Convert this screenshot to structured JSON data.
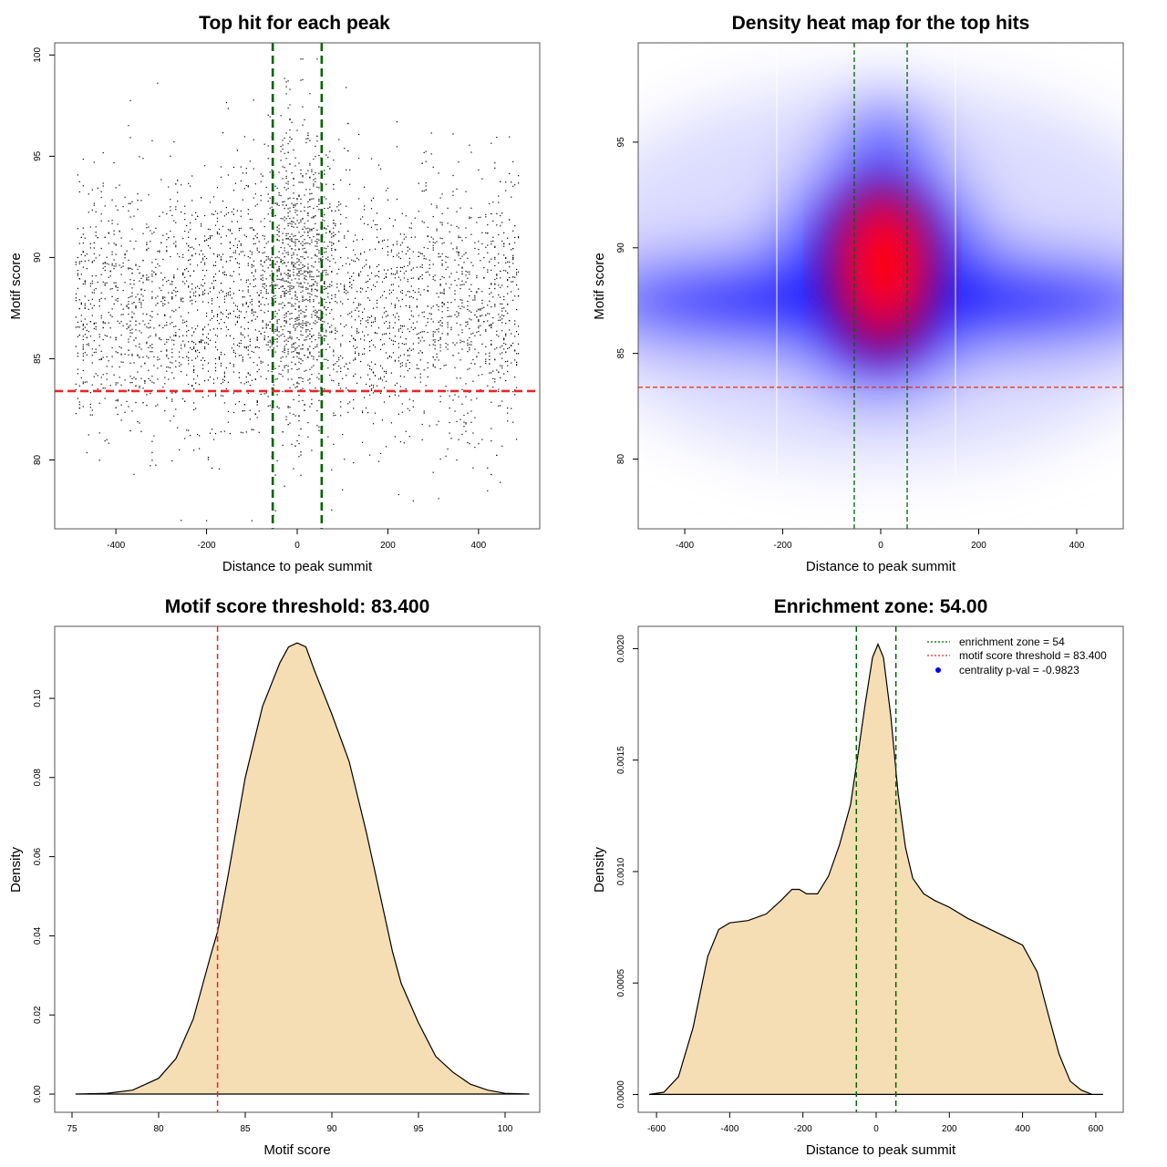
{
  "colors": {
    "points": "#000000",
    "enrichment_line": "#006400",
    "threshold_line": "#e8262a",
    "density_fill": "#f5deb3",
    "density_stroke": "#000000",
    "heat_low": "#ffffff",
    "heat_mid": "#0000ff",
    "heat_high": "#ff0000"
  },
  "chart_data": [
    {
      "id": "scatter",
      "type": "scatter",
      "title": "Top hit for each peak",
      "xlabel": "Distance to peak summit",
      "ylabel": "Motif score",
      "xlim": [
        -535,
        535
      ],
      "ylim": [
        76.6,
        100.6
      ],
      "xticks": [
        -400,
        -200,
        0,
        200,
        400
      ],
      "yticks": [
        80,
        85,
        90,
        95,
        100
      ],
      "xtick_labels": [
        "-400",
        "-200",
        "0",
        "200",
        "400"
      ],
      "ytick_labels": [
        "80",
        "85",
        "90",
        "95",
        "100"
      ],
      "enrichment_zone": 54,
      "threshold": 83.4,
      "points_estimate": {
        "count": 4200,
        "x_range": [
          -490,
          490
        ],
        "background_mean": 87.5,
        "background_sd": 3.1,
        "central_mean": 89.5,
        "central_sd": 3.6,
        "central_sd_x": 45
      }
    },
    {
      "id": "heatmap",
      "type": "heatmap",
      "title": "Density heat map for the top hits",
      "xlabel": "Distance to peak summit",
      "ylabel": "Motif score",
      "xlim": [
        -495,
        495
      ],
      "ylim": [
        76.7,
        99.7
      ],
      "xticks": [
        -400,
        -200,
        0,
        200,
        400
      ],
      "yticks": [
        80,
        85,
        90,
        95
      ],
      "xtick_labels": [
        "-400",
        "-200",
        "0",
        "200",
        "400"
      ],
      "ytick_labels": [
        "80",
        "85",
        "90",
        "95"
      ],
      "enrichment_zone": 54,
      "threshold": 83.4,
      "color_scale": [
        "#ffffff",
        "#0000ff",
        "#ff0000"
      ]
    },
    {
      "id": "score-density",
      "type": "area",
      "title": "Motif score threshold: 83.400",
      "xlabel": "Motif score",
      "ylabel": "Density",
      "xlim": [
        74,
        102
      ],
      "ylim": [
        -0.0046,
        0.1182
      ],
      "xticks": [
        75,
        80,
        85,
        90,
        95,
        100
      ],
      "yticks": [
        0,
        0.02,
        0.04,
        0.06,
        0.08,
        0.1
      ],
      "xtick_labels": [
        "75",
        "80",
        "85",
        "90",
        "95",
        "100"
      ],
      "ytick_labels": [
        "0.00",
        "0.02",
        "0.04",
        "0.06",
        "0.08",
        "0.10"
      ],
      "threshold": 83.4,
      "x": [
        75.2,
        77,
        78.5,
        80,
        81,
        82,
        83,
        83.4,
        84,
        85,
        86,
        87,
        87.5,
        88,
        88.5,
        89,
        90,
        91,
        92,
        93,
        93.5,
        94,
        95,
        96,
        97,
        98,
        99,
        100,
        101.4
      ],
      "y": [
        0,
        0.0002,
        0.001,
        0.004,
        0.009,
        0.019,
        0.035,
        0.041,
        0.055,
        0.08,
        0.098,
        0.109,
        0.113,
        0.114,
        0.113,
        0.107,
        0.096,
        0.084,
        0.066,
        0.046,
        0.036,
        0.028,
        0.018,
        0.0095,
        0.0055,
        0.0025,
        0.001,
        0.0002,
        0
      ]
    },
    {
      "id": "distance-density",
      "type": "area",
      "title": "Enrichment zone: 54.00",
      "xlabel": "Distance to peak summit",
      "ylabel": "Density",
      "xlim": [
        -650,
        675
      ],
      "ylim": [
        -8e-05,
        0.0021
      ],
      "xticks": [
        -600,
        -400,
        -200,
        0,
        200,
        400,
        600
      ],
      "yticks": [
        0,
        0.0005,
        0.001,
        0.0015,
        0.002
      ],
      "xtick_labels": [
        "-600",
        "-400",
        "-200",
        "0",
        "200",
        "400",
        "600"
      ],
      "ytick_labels": [
        "0.0000",
        "0.0005",
        "0.0010",
        "0.0015",
        "0.0020"
      ],
      "enrichment_zone": 54,
      "x": [
        -620,
        -580,
        -540,
        -500,
        -460,
        -430,
        -400,
        -350,
        -300,
        -260,
        -230,
        -210,
        -190,
        -160,
        -130,
        -100,
        -70,
        -50,
        -30,
        -10,
        5,
        20,
        40,
        60,
        80,
        100,
        130,
        160,
        200,
        250,
        300,
        350,
        400,
        440,
        470,
        500,
        530,
        560,
        590,
        620
      ],
      "y": [
        0,
        1e-05,
        8e-05,
        0.0003,
        0.00062,
        0.00074,
        0.00077,
        0.00078,
        0.00081,
        0.00087,
        0.00092,
        0.00092,
        0.0009,
        0.0009,
        0.00098,
        0.00112,
        0.0013,
        0.00152,
        0.00175,
        0.00196,
        0.00202,
        0.00196,
        0.0017,
        0.00135,
        0.00111,
        0.00097,
        0.0009,
        0.00087,
        0.00084,
        0.00079,
        0.00075,
        0.00071,
        0.00067,
        0.00055,
        0.00036,
        0.00018,
        6e-05,
        2e-05,
        0,
        0
      ],
      "legend": [
        {
          "label": "enrichment zone = 54",
          "kind": "dotted-line",
          "color": "#006400"
        },
        {
          "label": "motif score threshold = 83.400",
          "kind": "dotted-line",
          "color": "#e8262a"
        },
        {
          "label": "centrality p-val = -0.9823",
          "kind": "point",
          "color": "#0000ff"
        }
      ],
      "legend_position": "top-right"
    }
  ]
}
